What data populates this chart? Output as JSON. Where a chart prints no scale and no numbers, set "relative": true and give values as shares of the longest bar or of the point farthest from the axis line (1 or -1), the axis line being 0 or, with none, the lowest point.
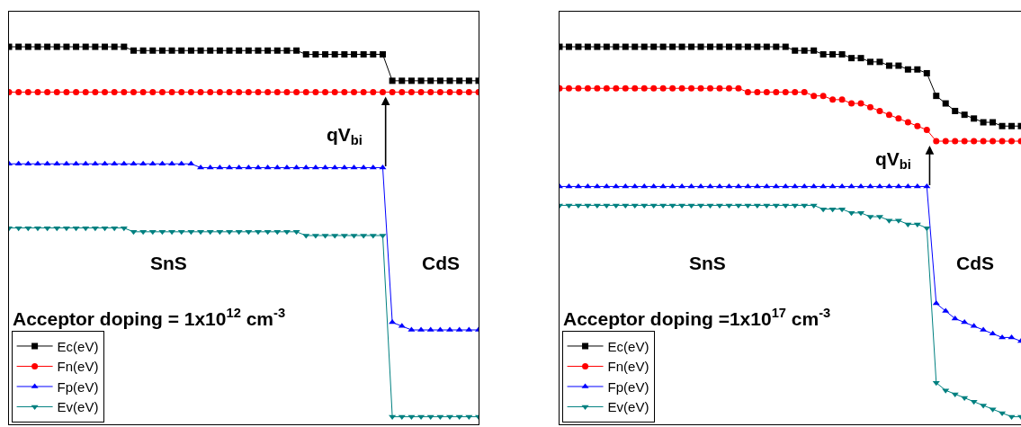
{
  "chart_data": [
    {
      "type": "line",
      "relative": true,
      "legend": "bottom left",
      "categories": [
        null,
        null,
        null,
        null,
        null,
        null,
        null,
        null,
        null,
        null,
        null,
        null,
        null,
        null,
        null,
        null,
        null,
        null,
        null,
        null,
        null,
        null,
        null,
        null,
        null,
        null,
        null,
        null,
        null,
        null,
        null,
        null,
        null,
        null,
        null,
        null,
        null,
        null,
        null,
        null,
        null,
        null,
        null,
        null,
        null,
        null,
        null,
        null,
        null,
        null
      ],
      "annotations": [
        "SnS",
        "CdS",
        "Acceptor doping = 1x10$^{12}$ cm$^{-3}$",
        "qV$_{bi}$"
      ],
      "series": [
        {
          "name": "Ec(eV)",
          "color": "#000000",
          "marker": "square",
          "values": [
            1.0,
            1.0,
            1.0,
            1.0,
            1.0,
            1.0,
            1.0,
            1.0,
            1.0,
            1.0,
            1.0,
            1.0,
            1.0,
            0.99,
            0.99,
            0.99,
            0.99,
            0.99,
            0.99,
            0.99,
            0.99,
            0.99,
            0.99,
            0.99,
            0.99,
            0.99,
            0.99,
            0.99,
            0.99,
            0.99,
            0.99,
            0.98,
            0.98,
            0.98,
            0.98,
            0.98,
            0.98,
            0.98,
            0.98,
            0.98,
            0.91,
            0.91,
            0.91,
            0.91,
            0.91,
            0.91,
            0.91,
            0.91,
            0.91,
            0.91
          ]
        },
        {
          "name": "Fn(eV)",
          "color": "#ff0000",
          "marker": "circle",
          "values": [
            0.88,
            0.88,
            0.88,
            0.88,
            0.88,
            0.88,
            0.88,
            0.88,
            0.88,
            0.88,
            0.88,
            0.88,
            0.88,
            0.88,
            0.88,
            0.88,
            0.88,
            0.88,
            0.88,
            0.88,
            0.88,
            0.88,
            0.88,
            0.88,
            0.88,
            0.88,
            0.88,
            0.88,
            0.88,
            0.88,
            0.88,
            0.88,
            0.88,
            0.88,
            0.88,
            0.88,
            0.88,
            0.88,
            0.88,
            0.88,
            0.88,
            0.88,
            0.88,
            0.88,
            0.88,
            0.88,
            0.88,
            0.88,
            0.88,
            0.88
          ]
        },
        {
          "name": "Fp(eV)",
          "color": "#0000ff",
          "marker": "triangle-up",
          "values": [
            0.69,
            0.69,
            0.69,
            0.69,
            0.69,
            0.69,
            0.69,
            0.69,
            0.69,
            0.69,
            0.69,
            0.69,
            0.69,
            0.69,
            0.69,
            0.69,
            0.69,
            0.69,
            0.69,
            0.69,
            0.68,
            0.68,
            0.68,
            0.68,
            0.68,
            0.68,
            0.68,
            0.68,
            0.68,
            0.68,
            0.68,
            0.68,
            0.68,
            0.68,
            0.68,
            0.68,
            0.68,
            0.68,
            0.68,
            0.68,
            0.27,
            0.26,
            0.25,
            0.25,
            0.25,
            0.25,
            0.25,
            0.25,
            0.25,
            0.25
          ]
        },
        {
          "name": "Ev(eV)",
          "color": "#008080",
          "marker": "triangle-down",
          "values": [
            0.52,
            0.52,
            0.52,
            0.52,
            0.52,
            0.52,
            0.52,
            0.52,
            0.52,
            0.52,
            0.52,
            0.52,
            0.52,
            0.51,
            0.51,
            0.51,
            0.51,
            0.51,
            0.51,
            0.51,
            0.51,
            0.51,
            0.51,
            0.51,
            0.51,
            0.51,
            0.51,
            0.51,
            0.51,
            0.51,
            0.51,
            0.5,
            0.5,
            0.5,
            0.5,
            0.5,
            0.5,
            0.5,
            0.5,
            0.5,
            0.02,
            0.02,
            0.02,
            0.02,
            0.02,
            0.02,
            0.02,
            0.02,
            0.02,
            0.02
          ]
        }
      ]
    },
    {
      "type": "line",
      "relative": true,
      "legend": "bottom left",
      "categories": [
        null,
        null,
        null,
        null,
        null,
        null,
        null,
        null,
        null,
        null,
        null,
        null,
        null,
        null,
        null,
        null,
        null,
        null,
        null,
        null,
        null,
        null,
        null,
        null,
        null,
        null,
        null,
        null,
        null,
        null,
        null,
        null,
        null,
        null,
        null,
        null,
        null,
        null,
        null,
        null,
        null,
        null,
        null,
        null,
        null,
        null,
        null,
        null,
        null,
        null
      ],
      "annotations": [
        "SnS",
        "CdS",
        "Acceptor doping =1x10$^{17}$ cm$^{-3}$",
        "qV$_{bi}$"
      ],
      "series": [
        {
          "name": "Ec(eV)",
          "color": "#000000",
          "marker": "square",
          "values": [
            1.0,
            1.0,
            1.0,
            1.0,
            1.0,
            1.0,
            1.0,
            1.0,
            1.0,
            1.0,
            1.0,
            1.0,
            1.0,
            1.0,
            1.0,
            1.0,
            1.0,
            1.0,
            1.0,
            1.0,
            1.0,
            1.0,
            1.0,
            1.0,
            1.0,
            0.99,
            0.99,
            0.99,
            0.98,
            0.98,
            0.98,
            0.97,
            0.97,
            0.96,
            0.96,
            0.95,
            0.95,
            0.94,
            0.94,
            0.93,
            0.87,
            0.85,
            0.83,
            0.82,
            0.81,
            0.8,
            0.8,
            0.79,
            0.79,
            0.79
          ]
        },
        {
          "name": "Fn(eV)",
          "color": "#ff0000",
          "marker": "circle",
          "values": [
            0.89,
            0.89,
            0.89,
            0.89,
            0.89,
            0.89,
            0.89,
            0.89,
            0.89,
            0.89,
            0.89,
            0.89,
            0.89,
            0.89,
            0.89,
            0.89,
            0.89,
            0.89,
            0.89,
            0.89,
            0.88,
            0.88,
            0.88,
            0.88,
            0.88,
            0.88,
            0.88,
            0.87,
            0.87,
            0.86,
            0.86,
            0.85,
            0.85,
            0.84,
            0.83,
            0.82,
            0.81,
            0.8,
            0.79,
            0.78,
            0.75,
            0.75,
            0.75,
            0.75,
            0.75,
            0.75,
            0.75,
            0.75,
            0.75,
            0.75
          ]
        },
        {
          "name": "Fp(eV)",
          "color": "#0000ff",
          "marker": "triangle-up",
          "values": [
            0.63,
            0.63,
            0.63,
            0.63,
            0.63,
            0.63,
            0.63,
            0.63,
            0.63,
            0.63,
            0.63,
            0.63,
            0.63,
            0.63,
            0.63,
            0.63,
            0.63,
            0.63,
            0.63,
            0.63,
            0.63,
            0.63,
            0.63,
            0.63,
            0.63,
            0.63,
            0.63,
            0.63,
            0.63,
            0.63,
            0.63,
            0.63,
            0.63,
            0.63,
            0.63,
            0.63,
            0.63,
            0.63,
            0.63,
            0.63,
            0.32,
            0.3,
            0.28,
            0.27,
            0.26,
            0.25,
            0.24,
            0.23,
            0.23,
            0.22
          ]
        },
        {
          "name": "Ev(eV)",
          "color": "#008080",
          "marker": "triangle-down",
          "values": [
            0.58,
            0.58,
            0.58,
            0.58,
            0.58,
            0.58,
            0.58,
            0.58,
            0.58,
            0.58,
            0.58,
            0.58,
            0.58,
            0.58,
            0.58,
            0.58,
            0.58,
            0.58,
            0.58,
            0.58,
            0.58,
            0.58,
            0.58,
            0.58,
            0.58,
            0.58,
            0.58,
            0.58,
            0.57,
            0.57,
            0.57,
            0.56,
            0.56,
            0.55,
            0.55,
            0.54,
            0.54,
            0.53,
            0.53,
            0.52,
            0.11,
            0.09,
            0.08,
            0.07,
            0.06,
            0.05,
            0.04,
            0.03,
            0.02,
            0.02
          ]
        }
      ]
    }
  ]
}
